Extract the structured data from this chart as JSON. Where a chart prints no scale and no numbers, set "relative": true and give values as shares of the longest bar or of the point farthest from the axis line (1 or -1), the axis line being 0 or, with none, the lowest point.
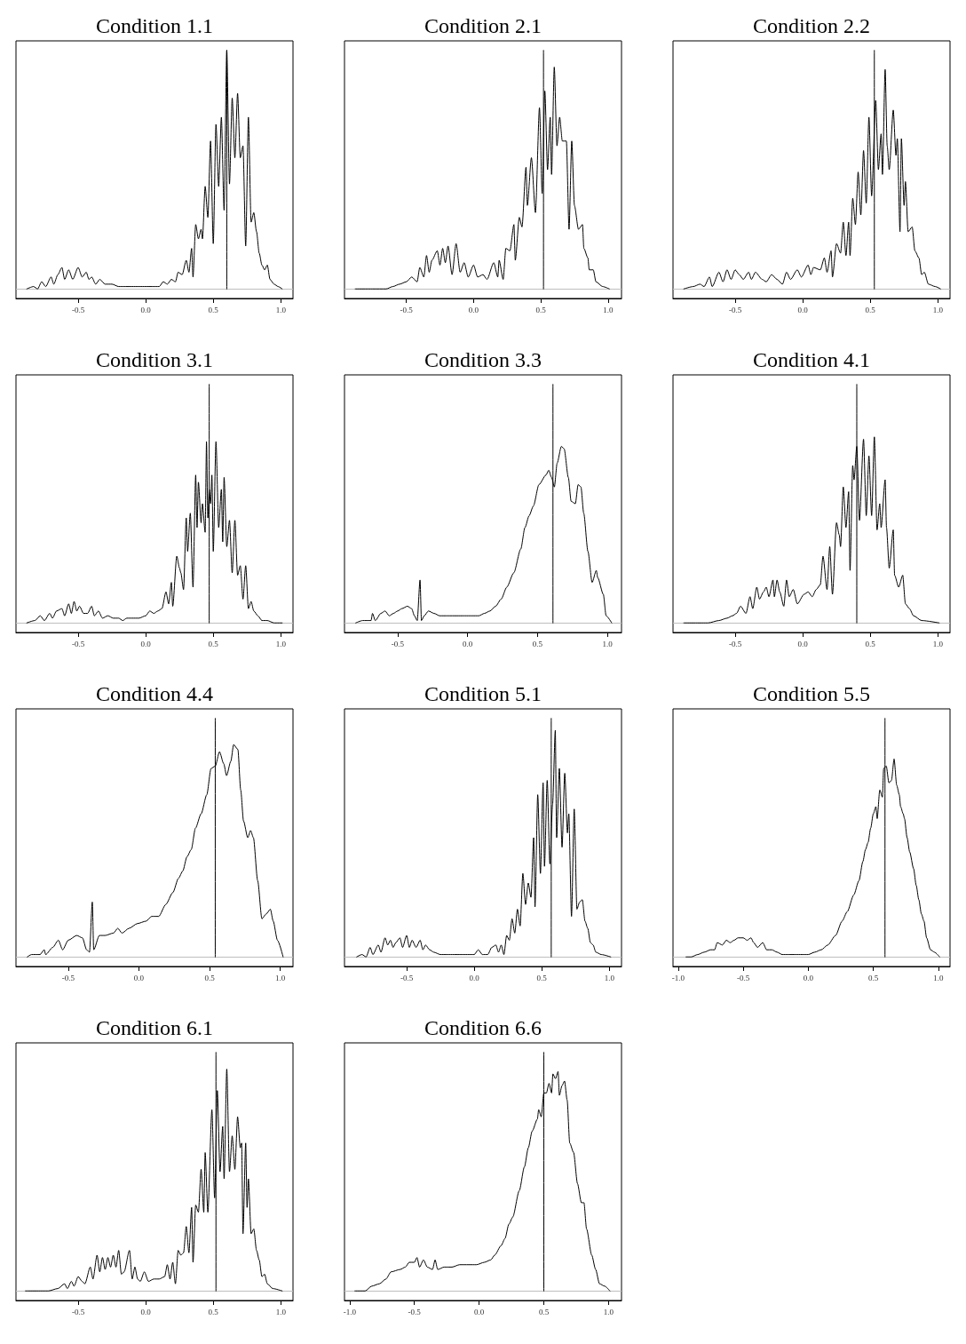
{
  "chart_data": [
    {
      "type": "line",
      "title": "Condition 1.1",
      "relative": true,
      "tick_labels": "x",
      "xlim": [
        -0.96,
        1.09
      ],
      "xticks": [
        {
          "value": -0.5,
          "label": "-0.5"
        },
        {
          "value": 0,
          "label": "0.0"
        },
        {
          "value": 0.5,
          "label": "0.5"
        },
        {
          "value": 1,
          "label": "1.0"
        }
      ],
      "ref_lines": [
        {
          "axis": "y",
          "value": 0,
          "color": "#bebebe"
        }
      ],
      "series": [
        {
          "color": "#000000",
          "x": [
            -0.88,
            -0.83,
            -0.8,
            -0.77,
            -0.74,
            -0.7,
            -0.68,
            -0.65,
            -0.62,
            -0.6,
            -0.57,
            -0.54,
            -0.5,
            -0.47,
            -0.44,
            -0.42,
            -0.4,
            -0.37,
            -0.34,
            -0.3,
            -0.25,
            -0.2,
            -0.15,
            -0.1,
            -0.05,
            0,
            0.05,
            0.1,
            0.13,
            0.16,
            0.19,
            0.22,
            0.24,
            0.27,
            0.3,
            0.32,
            0.34,
            0.35,
            0.37,
            0.39,
            0.41,
            0.42,
            0.44,
            0.46,
            0.48,
            0.5,
            0.52,
            0.54,
            0.56,
            0.58,
            0.6,
            0.62,
            0.64,
            0.66,
            0.68,
            0.7,
            0.72,
            0.74,
            0.76,
            0.78,
            0.8,
            0.82,
            0.84,
            0.86,
            0.88,
            0.9,
            0.92,
            0.95,
            0.98,
            1.01
          ],
          "values": [
            0,
            0.01,
            0,
            0.03,
            0.01,
            0.05,
            0.02,
            0.06,
            0.09,
            0.04,
            0.08,
            0.04,
            0.09,
            0.05,
            0.07,
            0.04,
            0.05,
            0.02,
            0.04,
            0.02,
            0.02,
            0.01,
            0.01,
            0.01,
            0.01,
            0.01,
            0.01,
            0.01,
            0.03,
            0.02,
            0.04,
            0.03,
            0.07,
            0.06,
            0.12,
            0.07,
            0.17,
            0.05,
            0.27,
            0.21,
            0.25,
            0.21,
            0.43,
            0.3,
            0.62,
            0.19,
            0.69,
            0.43,
            0.72,
            0.33,
            1,
            0.44,
            0.8,
            0.55,
            0.82,
            0.55,
            0.6,
            0.18,
            0.72,
            0.28,
            0.32,
            0.24,
            0.15,
            0.1,
            0.08,
            0.1,
            0.04,
            0.02,
            0.01,
            0
          ]
        },
        {
          "color": "#000000",
          "x": [
            0.6,
            0.6
          ],
          "values": [
            0,
            1
          ]
        }
      ]
    },
    {
      "type": "line",
      "title": "Condition 2.1",
      "relative": true,
      "tick_labels": "x",
      "xlim": [
        -0.96,
        1.1
      ],
      "xticks": [
        {
          "value": -0.5,
          "label": "-0.5"
        },
        {
          "value": 0,
          "label": "0.0"
        },
        {
          "value": 0.5,
          "label": "0.5"
        },
        {
          "value": 1,
          "label": "1.0"
        }
      ],
      "ref_lines": [
        {
          "axis": "y",
          "value": 0,
          "color": "#bebebe"
        }
      ],
      "series": [
        {
          "color": "#000000",
          "x": [
            -0.88,
            -0.75,
            -0.65,
            -0.6,
            -0.55,
            -0.5,
            -0.46,
            -0.42,
            -0.4,
            -0.37,
            -0.35,
            -0.33,
            -0.31,
            -0.27,
            -0.25,
            -0.23,
            -0.21,
            -0.19,
            -0.16,
            -0.13,
            -0.1,
            -0.07,
            -0.04,
            0,
            0.03,
            0.07,
            0.1,
            0.15,
            0.18,
            0.19,
            0.22,
            0.24,
            0.27,
            0.3,
            0.31,
            0.34,
            0.36,
            0.39,
            0.4,
            0.43,
            0.46,
            0.49,
            0.51,
            0.53,
            0.55,
            0.57,
            0.58,
            0.6,
            0.62,
            0.64,
            0.66,
            0.69,
            0.71,
            0.73,
            0.75,
            0.78,
            0.81,
            0.82,
            0.85,
            0.86,
            0.89,
            0.91,
            0.96,
            1.01
          ],
          "values": [
            0,
            0,
            0,
            0.01,
            0.02,
            0.03,
            0.05,
            0.03,
            0.09,
            0.05,
            0.14,
            0.07,
            0.12,
            0.16,
            0.1,
            0.17,
            0.11,
            0.18,
            0.06,
            0.19,
            0.07,
            0.11,
            0.05,
            0.1,
            0.05,
            0.06,
            0.04,
            0.11,
            0.05,
            0.12,
            0.04,
            0.17,
            0.16,
            0.27,
            0.12,
            0.3,
            0.26,
            0.51,
            0.35,
            0.55,
            0.32,
            0.76,
            0.4,
            0.83,
            0.5,
            0.72,
            0.48,
            0.93,
            0.6,
            0.72,
            0.62,
            0.62,
            0.25,
            0.62,
            0.35,
            0.25,
            0.27,
            0.17,
            0.13,
            0.08,
            0.08,
            0.03,
            0.01,
            0
          ]
        },
        {
          "color": "#000000",
          "x": [
            0.52,
            0.52
          ],
          "values": [
            0,
            1
          ]
        }
      ]
    },
    {
      "type": "line",
      "title": "Condition 2.2",
      "relative": true,
      "tick_labels": "x",
      "xlim": [
        -0.96,
        1.09
      ],
      "xticks": [
        {
          "value": -0.5,
          "label": "-0.5"
        },
        {
          "value": 0,
          "label": "0.0"
        },
        {
          "value": 0.5,
          "label": "0.5"
        },
        {
          "value": 1,
          "label": "1.0"
        }
      ],
      "ref_lines": [
        {
          "axis": "y",
          "value": 0,
          "color": "#bebebe"
        }
      ],
      "series": [
        {
          "color": "#000000",
          "x": [
            -0.88,
            -0.81,
            -0.76,
            -0.73,
            -0.69,
            -0.67,
            -0.62,
            -0.59,
            -0.56,
            -0.53,
            -0.5,
            -0.47,
            -0.44,
            -0.4,
            -0.38,
            -0.35,
            -0.3,
            -0.27,
            -0.23,
            -0.19,
            -0.15,
            -0.12,
            -0.09,
            -0.04,
            -0.01,
            0.04,
            0.06,
            0.08,
            0.13,
            0.16,
            0.18,
            0.21,
            0.22,
            0.25,
            0.28,
            0.3,
            0.32,
            0.34,
            0.35,
            0.37,
            0.39,
            0.41,
            0.43,
            0.45,
            0.47,
            0.49,
            0.51,
            0.54,
            0.56,
            0.58,
            0.59,
            0.61,
            0.625,
            0.64,
            0.67,
            0.69,
            0.7,
            0.72,
            0.73,
            0.75,
            0.76,
            0.78,
            0.81,
            0.83,
            0.86,
            0.88,
            0.9,
            0.93,
            0.98,
            1.02
          ],
          "values": [
            0,
            0.01,
            0.02,
            0.01,
            0.05,
            0.01,
            0.07,
            0.03,
            0.08,
            0.04,
            0.08,
            0.06,
            0.04,
            0.07,
            0.04,
            0.07,
            0.04,
            0.03,
            0.06,
            0.04,
            0.02,
            0.07,
            0.04,
            0.08,
            0.05,
            0.1,
            0.06,
            0.09,
            0.08,
            0.13,
            0.07,
            0.16,
            0.05,
            0.19,
            0.15,
            0.28,
            0.14,
            0.28,
            0.14,
            0.38,
            0.27,
            0.49,
            0.31,
            0.58,
            0.36,
            0.72,
            0.39,
            0.79,
            0.5,
            0.65,
            0.48,
            0.92,
            0.6,
            0.5,
            0.75,
            0.56,
            0.63,
            0.24,
            0.63,
            0.35,
            0.45,
            0.24,
            0.26,
            0.16,
            0.13,
            0.06,
            0.07,
            0.02,
            0.01,
            0
          ]
        },
        {
          "color": "#000000",
          "x": [
            0.53,
            0.53
          ],
          "values": [
            0,
            1
          ]
        }
      ]
    },
    {
      "type": "line",
      "title": "Condition 3.1",
      "relative": true,
      "tick_labels": "x",
      "xlim": [
        -0.96,
        1.09
      ],
      "xticks": [
        {
          "value": -0.5,
          "label": "-0.5"
        },
        {
          "value": 0,
          "label": "0.0"
        },
        {
          "value": 0.5,
          "label": "0.5"
        },
        {
          "value": 1,
          "label": "1.0"
        }
      ],
      "ref_lines": [
        {
          "axis": "y",
          "value": 0,
          "color": "#bebebe"
        }
      ],
      "series": [
        {
          "color": "#000000",
          "x": [
            -0.88,
            -0.82,
            -0.78,
            -0.75,
            -0.71,
            -0.69,
            -0.66,
            -0.62,
            -0.6,
            -0.57,
            -0.55,
            -0.53,
            -0.51,
            -0.49,
            -0.46,
            -0.43,
            -0.4,
            -0.38,
            -0.35,
            -0.32,
            -0.28,
            -0.24,
            -0.2,
            -0.17,
            -0.14,
            -0.1,
            -0.05,
            0,
            0.03,
            0.06,
            0.09,
            0.12,
            0.15,
            0.17,
            0.19,
            0.2,
            0.23,
            0.25,
            0.26,
            0.28,
            0.3,
            0.31,
            0.33,
            0.35,
            0.37,
            0.38,
            0.39,
            0.41,
            0.42,
            0.44,
            0.45,
            0.46,
            0.47,
            0.48,
            0.49,
            0.5,
            0.52,
            0.54,
            0.56,
            0.57,
            0.58,
            0.6,
            0.62,
            0.64,
            0.66,
            0.68,
            0.7,
            0.72,
            0.74,
            0.76,
            0.78,
            0.8,
            0.83,
            0.86,
            0.9,
            0.95,
            1.01
          ],
          "values": [
            0,
            0.01,
            0.03,
            0.01,
            0.04,
            0.02,
            0.05,
            0.06,
            0.03,
            0.08,
            0.04,
            0.09,
            0.05,
            0.07,
            0.04,
            0.04,
            0.07,
            0.03,
            0.05,
            0.02,
            0.03,
            0.02,
            0.02,
            0.01,
            0.02,
            0.02,
            0.02,
            0.03,
            0.05,
            0.04,
            0.05,
            0.06,
            0.13,
            0.08,
            0.17,
            0.07,
            0.28,
            0.23,
            0.21,
            0.14,
            0.44,
            0.3,
            0.46,
            0.15,
            0.62,
            0.4,
            0.59,
            0.42,
            0.5,
            0.38,
            0.76,
            0.44,
            0.56,
            0.5,
            0.62,
            0.3,
            0.76,
            0.4,
            0.56,
            0.34,
            0.61,
            0.32,
            0.43,
            0.21,
            0.43,
            0.2,
            0.24,
            0.1,
            0.24,
            0.06,
            0.09,
            0.05,
            0.03,
            0.01,
            0.01,
            0,
            0
          ]
        },
        {
          "color": "#000000",
          "x": [
            0.47,
            0.47
          ],
          "values": [
            0,
            1
          ]
        }
      ]
    },
    {
      "type": "line",
      "title": "Condition 3.3",
      "relative": true,
      "tick_labels": "x",
      "xlim": [
        -0.88,
        1.1
      ],
      "xticks": [
        {
          "value": -0.5,
          "label": "-0.5"
        },
        {
          "value": 0,
          "label": "0.0"
        },
        {
          "value": 0.5,
          "label": "0.5"
        },
        {
          "value": 1,
          "label": "1.0"
        }
      ],
      "ref_lines": [
        {
          "axis": "y",
          "value": 0,
          "color": "#bebebe"
        }
      ],
      "series": [
        {
          "color": "#000000",
          "x": [
            -0.8,
            -0.75,
            -0.69,
            -0.68,
            -0.66,
            -0.62,
            -0.59,
            -0.56,
            -0.53,
            -0.5,
            -0.47,
            -0.43,
            -0.4,
            -0.38,
            -0.36,
            -0.34,
            -0.33,
            -0.31,
            -0.28,
            -0.24,
            -0.2,
            -0.14,
            -0.08,
            -0.02,
            0.03,
            0.08,
            0.12,
            0.16,
            0.2,
            0.24,
            0.28,
            0.33,
            0.38,
            0.41,
            0.44,
            0.47,
            0.51,
            0.56,
            0.58,
            0.6,
            0.62,
            0.64,
            0.67,
            0.69,
            0.72,
            0.74,
            0.77,
            0.79,
            0.81,
            0.83,
            0.86,
            0.89,
            0.92,
            0.93,
            0.97,
            0.99,
            1.03
          ],
          "values": [
            0,
            0.01,
            0.01,
            0.04,
            0.01,
            0.04,
            0.05,
            0.03,
            0.04,
            0.05,
            0.06,
            0.07,
            0.06,
            0.03,
            0.01,
            0.18,
            0.01,
            0.03,
            0.05,
            0.04,
            0.03,
            0.03,
            0.03,
            0.03,
            0.03,
            0.03,
            0.04,
            0.05,
            0.07,
            0.1,
            0.15,
            0.21,
            0.31,
            0.4,
            0.45,
            0.49,
            0.58,
            0.62,
            0.64,
            0.61,
            0.57,
            0.67,
            0.74,
            0.73,
            0.61,
            0.51,
            0.5,
            0.58,
            0.57,
            0.46,
            0.3,
            0.17,
            0.22,
            0.19,
            0.12,
            0.03,
            0
          ]
        },
        {
          "color": "#000000",
          "x": [
            0.61,
            0.61
          ],
          "values": [
            0,
            1
          ]
        }
      ]
    },
    {
      "type": "line",
      "title": "Condition 4.1",
      "relative": true,
      "tick_labels": "x",
      "xlim": [
        -0.96,
        1.09
      ],
      "xticks": [
        {
          "value": -0.5,
          "label": "-0.5"
        },
        {
          "value": 0,
          "label": "0.0"
        },
        {
          "value": 0.5,
          "label": "0.5"
        },
        {
          "value": 1,
          "label": "1.0"
        }
      ],
      "ref_lines": [
        {
          "axis": "y",
          "value": 0,
          "color": "#bebebe"
        }
      ],
      "series": [
        {
          "color": "#000000",
          "x": [
            -0.88,
            -0.7,
            -0.62,
            -0.56,
            -0.52,
            -0.49,
            -0.46,
            -0.42,
            -0.39,
            -0.37,
            -0.34,
            -0.32,
            -0.29,
            -0.27,
            -0.25,
            -0.22,
            -0.21,
            -0.19,
            -0.17,
            -0.14,
            -0.12,
            -0.1,
            -0.07,
            -0.04,
            0.01,
            0.04,
            0.07,
            0.1,
            0.13,
            0.15,
            0.18,
            0.2,
            0.22,
            0.25,
            0.27,
            0.28,
            0.3,
            0.32,
            0.34,
            0.35,
            0.37,
            0.38,
            0.4,
            0.42,
            0.45,
            0.47,
            0.49,
            0.51,
            0.53,
            0.55,
            0.57,
            0.58,
            0.61,
            0.62,
            0.64,
            0.67,
            0.68,
            0.71,
            0.74,
            0.76,
            0.79,
            0.82,
            0.88,
            1.01
          ],
          "values": [
            0,
            0,
            0.01,
            0.02,
            0.03,
            0.04,
            0.07,
            0.04,
            0.11,
            0.06,
            0.15,
            0.1,
            0.13,
            0.15,
            0.11,
            0.18,
            0.11,
            0.18,
            0.13,
            0.07,
            0.18,
            0.11,
            0.14,
            0.08,
            0.12,
            0.13,
            0.11,
            0.14,
            0.16,
            0.28,
            0.14,
            0.32,
            0.12,
            0.42,
            0.37,
            0.32,
            0.57,
            0.4,
            0.55,
            0.22,
            0.66,
            0.6,
            0.74,
            0.43,
            0.77,
            0.45,
            0.7,
            0.45,
            0.78,
            0.39,
            0.5,
            0.4,
            0.6,
            0.4,
            0.23,
            0.39,
            0.2,
            0.15,
            0.2,
            0.08,
            0.06,
            0.03,
            0.01,
            0
          ]
        },
        {
          "color": "#000000",
          "x": [
            0.4,
            0.4
          ],
          "values": [
            0,
            1
          ]
        }
      ]
    },
    {
      "type": "line",
      "title": "Condition 4.4",
      "relative": true,
      "tick_labels": "x",
      "xlim": [
        -0.87,
        1.09
      ],
      "xticks": [
        {
          "value": -0.5,
          "label": "-0.5"
        },
        {
          "value": 0,
          "label": "0.0"
        },
        {
          "value": 0.5,
          "label": "0.5"
        },
        {
          "value": 1,
          "label": "1.0"
        }
      ],
      "ref_lines": [
        {
          "axis": "y",
          "value": 0,
          "color": "#bebebe"
        }
      ],
      "series": [
        {
          "color": "#000000",
          "x": [
            -0.79,
            -0.76,
            -0.7,
            -0.67,
            -0.66,
            -0.61,
            -0.57,
            -0.54,
            -0.5,
            -0.44,
            -0.4,
            -0.37,
            -0.35,
            -0.33,
            -0.32,
            -0.28,
            -0.24,
            -0.18,
            -0.15,
            -0.12,
            -0.07,
            -0.01,
            0.05,
            0.09,
            0.14,
            0.19,
            0.24,
            0.28,
            0.31,
            0.34,
            0.37,
            0.4,
            0.44,
            0.48,
            0.51,
            0.54,
            0.57,
            0.6,
            0.62,
            0.65,
            0.67,
            0.7,
            0.72,
            0.74,
            0.77,
            0.79,
            0.81,
            0.84,
            0.87,
            0.9,
            0.93,
            0.95,
            0.98,
            1.02
          ],
          "values": [
            0,
            0.01,
            0.01,
            0.03,
            0.01,
            0.04,
            0.07,
            0.03,
            0.07,
            0.09,
            0.08,
            0.03,
            0.02,
            0.23,
            0.03,
            0.09,
            0.09,
            0.1,
            0.12,
            0.1,
            0.12,
            0.14,
            0.15,
            0.17,
            0.17,
            0.22,
            0.27,
            0.33,
            0.36,
            0.42,
            0.45,
            0.54,
            0.6,
            0.68,
            0.79,
            0.8,
            0.86,
            0.81,
            0.76,
            0.82,
            0.89,
            0.87,
            0.7,
            0.57,
            0.5,
            0.53,
            0.5,
            0.32,
            0.16,
            0.18,
            0.2,
            0.15,
            0.07,
            0
          ]
        },
        {
          "color": "#000000",
          "x": [
            0.54,
            0.54
          ],
          "values": [
            0,
            1
          ]
        }
      ]
    },
    {
      "type": "line",
      "title": "Condition 5.1",
      "relative": true,
      "tick_labels": "x",
      "xlim": [
        -0.96,
        1.09
      ],
      "xticks": [
        {
          "value": -0.5,
          "label": "-0.5"
        },
        {
          "value": 0,
          "label": "0.0"
        },
        {
          "value": 0.5,
          "label": "0.5"
        },
        {
          "value": 1,
          "label": "1.0"
        }
      ],
      "ref_lines": [
        {
          "axis": "y",
          "value": 0,
          "color": "#bebebe"
        }
      ],
      "series": [
        {
          "color": "#000000",
          "x": [
            -0.87,
            -0.83,
            -0.8,
            -0.77,
            -0.75,
            -0.71,
            -0.69,
            -0.66,
            -0.64,
            -0.62,
            -0.6,
            -0.58,
            -0.55,
            -0.53,
            -0.5,
            -0.48,
            -0.46,
            -0.43,
            -0.4,
            -0.38,
            -0.36,
            -0.33,
            -0.3,
            -0.25,
            -0.2,
            -0.15,
            -0.1,
            -0.05,
            0,
            0.03,
            0.06,
            0.1,
            0.13,
            0.16,
            0.18,
            0.2,
            0.22,
            0.24,
            0.26,
            0.28,
            0.3,
            0.32,
            0.34,
            0.36,
            0.38,
            0.4,
            0.42,
            0.44,
            0.45,
            0.47,
            0.49,
            0.51,
            0.52,
            0.54,
            0.56,
            0.58,
            0.6,
            0.61,
            0.63,
            0.65,
            0.67,
            0.69,
            0.7,
            0.72,
            0.74,
            0.76,
            0.78,
            0.8,
            0.82,
            0.84,
            0.86,
            0.88,
            0.9,
            0.94,
            1.01
          ],
          "values": [
            0,
            0.01,
            0,
            0.04,
            0.01,
            0.05,
            0.02,
            0.08,
            0.05,
            0.07,
            0.04,
            0.06,
            0.08,
            0.04,
            0.09,
            0.04,
            0.07,
            0.04,
            0.07,
            0.03,
            0.05,
            0.03,
            0.02,
            0.01,
            0.01,
            0.01,
            0.01,
            0.01,
            0.01,
            0.03,
            0.01,
            0.01,
            0.04,
            0.05,
            0.02,
            0.05,
            0.01,
            0.09,
            0.07,
            0.16,
            0.1,
            0.2,
            0.13,
            0.35,
            0.22,
            0.31,
            0.25,
            0.5,
            0.21,
            0.68,
            0.35,
            0.73,
            0.38,
            0.74,
            0.39,
            0.64,
            0.95,
            0.5,
            0.79,
            0.46,
            0.77,
            0.52,
            0.6,
            0.17,
            0.62,
            0.2,
            0.23,
            0.24,
            0.15,
            0.12,
            0.06,
            0.05,
            0.02,
            0.01,
            0
          ]
        },
        {
          "color": "#000000",
          "x": [
            0.57,
            0.57
          ],
          "values": [
            0,
            1
          ]
        }
      ]
    },
    {
      "type": "line",
      "title": "Condition 5.5",
      "relative": true,
      "tick_labels": "x",
      "xlim": [
        -1.04,
        1.09
      ],
      "xticks": [
        {
          "value": -1,
          "label": "-1.0"
        },
        {
          "value": -0.5,
          "label": "-0.5"
        },
        {
          "value": 0,
          "label": "0.0"
        },
        {
          "value": 0.5,
          "label": "0.5"
        },
        {
          "value": 1,
          "label": "1.0"
        }
      ],
      "ref_lines": [
        {
          "axis": "y",
          "value": 0,
          "color": "#bebebe"
        }
      ],
      "series": [
        {
          "color": "#000000",
          "x": [
            -0.94,
            -0.9,
            -0.85,
            -0.8,
            -0.75,
            -0.72,
            -0.7,
            -0.66,
            -0.63,
            -0.6,
            -0.57,
            -0.54,
            -0.5,
            -0.47,
            -0.44,
            -0.42,
            -0.39,
            -0.35,
            -0.32,
            -0.28,
            -0.24,
            -0.2,
            -0.15,
            -0.1,
            -0.05,
            0,
            0.05,
            0.1,
            0.15,
            0.21,
            0.26,
            0.3,
            0.35,
            0.39,
            0.42,
            0.44,
            0.46,
            0.48,
            0.5,
            0.52,
            0.53,
            0.55,
            0.57,
            0.58,
            0.6,
            0.62,
            0.64,
            0.66,
            0.68,
            0.7,
            0.71,
            0.73,
            0.74,
            0.76,
            0.78,
            0.81,
            0.83,
            0.85,
            0.87,
            0.89,
            0.91,
            0.94,
            0.97,
            1.01
          ],
          "values": [
            0,
            0,
            0.01,
            0.02,
            0.03,
            0.03,
            0.06,
            0.05,
            0.07,
            0.06,
            0.07,
            0.08,
            0.08,
            0.07,
            0.08,
            0.06,
            0.04,
            0.06,
            0.03,
            0.03,
            0.02,
            0.01,
            0.01,
            0.01,
            0.01,
            0.01,
            0.02,
            0.03,
            0.05,
            0.09,
            0.15,
            0.19,
            0.26,
            0.32,
            0.4,
            0.45,
            0.48,
            0.54,
            0.6,
            0.63,
            0.58,
            0.7,
            0.67,
            0.79,
            0.8,
            0.73,
            0.74,
            0.83,
            0.72,
            0.68,
            0.63,
            0.6,
            0.58,
            0.5,
            0.44,
            0.37,
            0.3,
            0.24,
            0.18,
            0.15,
            0.08,
            0.03,
            0.02,
            0
          ]
        },
        {
          "color": "#000000",
          "x": [
            0.59,
            0.59
          ],
          "values": [
            0,
            1
          ]
        }
      ]
    },
    {
      "type": "line",
      "title": "Condition 6.1",
      "relative": true,
      "tick_labels": "x",
      "xlim": [
        -0.96,
        1.09
      ],
      "xticks": [
        {
          "value": -0.5,
          "label": "-0.5"
        },
        {
          "value": 0,
          "label": "0.0"
        },
        {
          "value": 0.5,
          "label": "0.5"
        },
        {
          "value": 1,
          "label": "1.0"
        }
      ],
      "ref_lines": [
        {
          "axis": "y",
          "value": 0,
          "color": "#bebebe"
        }
      ],
      "series": [
        {
          "color": "#000000",
          "x": [
            -0.89,
            -0.72,
            -0.65,
            -0.6,
            -0.58,
            -0.55,
            -0.53,
            -0.5,
            -0.47,
            -0.45,
            -0.41,
            -0.39,
            -0.36,
            -0.34,
            -0.32,
            -0.3,
            -0.28,
            -0.26,
            -0.24,
            -0.22,
            -0.2,
            -0.18,
            -0.16,
            -0.12,
            -0.1,
            -0.08,
            -0.06,
            -0.04,
            -0.01,
            0.02,
            0.06,
            0.1,
            0.14,
            0.16,
            0.18,
            0.2,
            0.22,
            0.24,
            0.26,
            0.28,
            0.3,
            0.32,
            0.34,
            0.35,
            0.37,
            0.39,
            0.41,
            0.43,
            0.44,
            0.46,
            0.49,
            0.51,
            0.53,
            0.55,
            0.57,
            0.58,
            0.6,
            0.62,
            0.64,
            0.66,
            0.68,
            0.7,
            0.71,
            0.72,
            0.74,
            0.75,
            0.76,
            0.78,
            0.8,
            0.82,
            0.84,
            0.86,
            0.88,
            0.9,
            0.94,
            1.01
          ],
          "values": [
            0,
            0,
            0.01,
            0.03,
            0.01,
            0.04,
            0.02,
            0.06,
            0.04,
            0.03,
            0.1,
            0.05,
            0.15,
            0.08,
            0.14,
            0.09,
            0.14,
            0.1,
            0.15,
            0.1,
            0.17,
            0.07,
            0.08,
            0.17,
            0.05,
            0.1,
            0.05,
            0.04,
            0.08,
            0.04,
            0.05,
            0.05,
            0.06,
            0.11,
            0.05,
            0.12,
            0.03,
            0.17,
            0.15,
            0.16,
            0.27,
            0.16,
            0.35,
            0.12,
            0.36,
            0.33,
            0.51,
            0.33,
            0.58,
            0.33,
            0.76,
            0.39,
            0.84,
            0.5,
            0.69,
            0.47,
            0.93,
            0.5,
            0.65,
            0.51,
            0.73,
            0.6,
            0.62,
            0.24,
            0.62,
            0.35,
            0.47,
            0.24,
            0.26,
            0.17,
            0.13,
            0.06,
            0.07,
            0.03,
            0.01,
            0
          ]
        },
        {
          "color": "#000000",
          "x": [
            0.52,
            0.52
          ],
          "values": [
            0,
            1
          ]
        }
      ]
    },
    {
      "type": "line",
      "title": "Condition 6.6",
      "relative": true,
      "tick_labels": "x",
      "xlim": [
        -1.04,
        1.1
      ],
      "xticks": [
        {
          "value": -1,
          "label": "-1.0"
        },
        {
          "value": -0.5,
          "label": "-0.5"
        },
        {
          "value": 0,
          "label": "0.0"
        },
        {
          "value": 0.5,
          "label": "0.5"
        },
        {
          "value": 1,
          "label": "1.0"
        }
      ],
      "ref_lines": [
        {
          "axis": "y",
          "value": 0,
          "color": "#bebebe"
        }
      ],
      "series": [
        {
          "color": "#000000",
          "x": [
            -0.96,
            -0.88,
            -0.83,
            -0.77,
            -0.72,
            -0.68,
            -0.61,
            -0.57,
            -0.54,
            -0.5,
            -0.48,
            -0.46,
            -0.43,
            -0.4,
            -0.36,
            -0.34,
            -0.32,
            -0.27,
            -0.21,
            -0.15,
            -0.08,
            -0.02,
            0.04,
            0.09,
            0.12,
            0.17,
            0.2,
            0.23,
            0.26,
            0.31,
            0.35,
            0.38,
            0.41,
            0.45,
            0.46,
            0.48,
            0.5,
            0.52,
            0.54,
            0.56,
            0.57,
            0.59,
            0.61,
            0.62,
            0.64,
            0.66,
            0.68,
            0.7,
            0.73,
            0.76,
            0.79,
            0.81,
            0.83,
            0.87,
            0.9,
            0.93,
            0.97,
            1.01
          ],
          "values": [
            0,
            0,
            0.02,
            0.03,
            0.05,
            0.08,
            0.09,
            0.1,
            0.12,
            0.12,
            0.14,
            0.1,
            0.13,
            0.1,
            0.09,
            0.13,
            0.09,
            0.1,
            0.1,
            0.11,
            0.11,
            0.11,
            0.12,
            0.13,
            0.15,
            0.19,
            0.22,
            0.28,
            0.31,
            0.42,
            0.52,
            0.6,
            0.67,
            0.72,
            0.76,
            0.73,
            0.83,
            0.83,
            0.87,
            0.83,
            0.91,
            0.89,
            0.92,
            0.82,
            0.86,
            0.88,
            0.8,
            0.62,
            0.58,
            0.45,
            0.37,
            0.37,
            0.26,
            0.15,
            0.09,
            0.03,
            0.02,
            0
          ]
        },
        {
          "color": "#000000",
          "x": [
            0.5,
            0.5
          ],
          "values": [
            0,
            1
          ]
        }
      ]
    }
  ]
}
